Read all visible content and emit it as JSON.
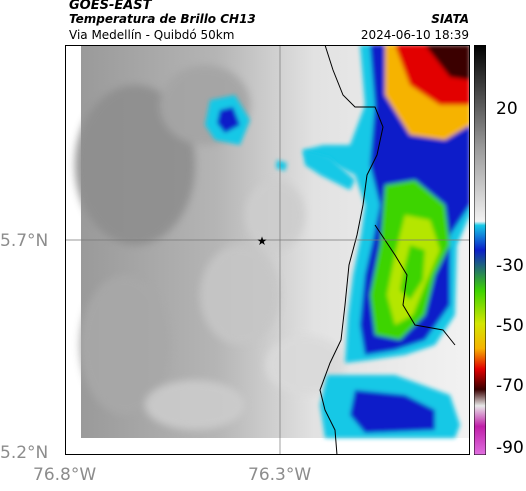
{
  "header": {
    "satellite": "GOES-EAST",
    "product": "Temperatura de Brillo CH13",
    "region": "Via Medellín - Quibdó 50km",
    "org": "SIATA",
    "timestamp": "2024-06-10 18:39"
  },
  "axes": {
    "lat_labels": [
      "5.7°N",
      "5.2°N"
    ],
    "lon_labels": [
      "76.8°W",
      "76.3°W"
    ]
  },
  "colorbar": {
    "labels": [
      "20",
      "-30",
      "-50",
      "-70",
      "-90"
    ]
  },
  "colors": {
    "cold_green": "#3ed400",
    "deep_blue": "#0b1fc9",
    "cyan": "#16c8e6",
    "warm_gray": "#d8d8d8",
    "red": "#e20000"
  }
}
